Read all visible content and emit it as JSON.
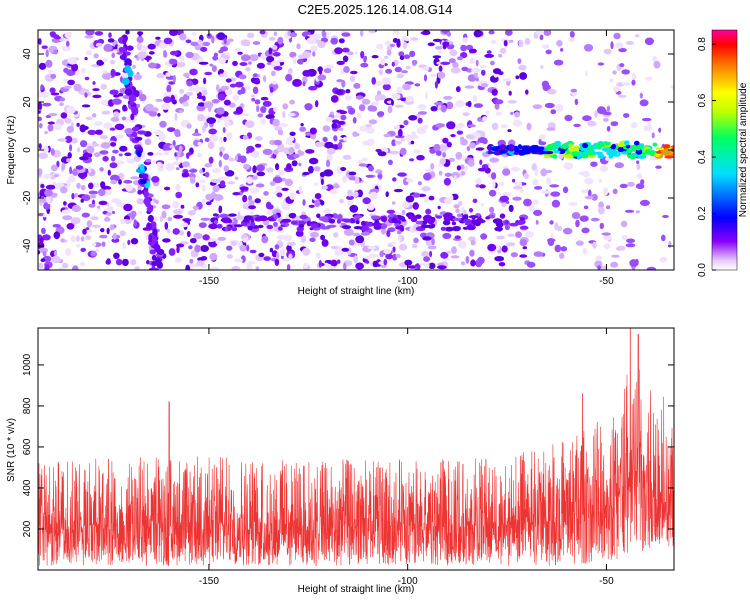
{
  "title": "C2E5.2025.126.14.08.G14",
  "chart_data": [
    {
      "type": "heatmap",
      "xlabel": "Height of straight line (km)",
      "ylabel": "Frequency (Hz)",
      "xlim": [
        -193,
        -33
      ],
      "ylim": [
        -50,
        50
      ],
      "xticks": [
        -150,
        -100,
        -50
      ],
      "yticks": [
        -40,
        -20,
        0,
        20,
        40
      ],
      "colorbar": {
        "label": "Normalized spectral amplitude",
        "range": [
          0,
          0.85
        ],
        "ticks": [
          0.0,
          0.2,
          0.4,
          0.6,
          0.8
        ],
        "colors": [
          "#ffffff",
          "#8800ff",
          "#0000ff",
          "#00e0ff",
          "#00ff60",
          "#c0ff00",
          "#ffff00",
          "#ff7000",
          "#ff0000",
          "#ff00a0"
        ]
      },
      "features": [
        {
          "description_values": "diagonal streak",
          "x_start": -172,
          "freq_start": 48,
          "x_end": -163,
          "freq_end": -48
        },
        {
          "description_values": "narrowband line near 0 Hz",
          "x_start": -80,
          "x_end": -33,
          "freq": 0
        }
      ]
    },
    {
      "type": "line",
      "xlabel": "Height of straight line (km)",
      "ylabel": "SNR (10 * v/v)",
      "xlim": [
        -193,
        -33
      ],
      "ylim": [
        0,
        1180
      ],
      "xticks": [
        -150,
        -100,
        -50
      ],
      "yticks": [
        200,
        400,
        600,
        800,
        1000
      ],
      "color": "#ee3333",
      "envelope": [
        {
          "x": -193,
          "low": 20,
          "high": 520
        },
        {
          "x": -170,
          "low": 20,
          "high": 560
        },
        {
          "x": -150,
          "low": 20,
          "high": 560
        },
        {
          "x": -130,
          "low": 20,
          "high": 540
        },
        {
          "x": -110,
          "low": 20,
          "high": 540
        },
        {
          "x": -90,
          "low": 20,
          "high": 540
        },
        {
          "x": -75,
          "low": 20,
          "high": 560
        },
        {
          "x": -65,
          "low": 20,
          "high": 600
        },
        {
          "x": -55,
          "low": 30,
          "high": 700
        },
        {
          "x": -48,
          "low": 50,
          "high": 800
        },
        {
          "x": -42,
          "low": 80,
          "high": 1100
        },
        {
          "x": -38,
          "low": 100,
          "high": 900
        },
        {
          "x": -33,
          "low": 100,
          "high": 800
        }
      ],
      "spikes": [
        {
          "x": -160,
          "y": 820
        },
        {
          "x": -56,
          "y": 860
        },
        {
          "x": -44,
          "y": 1180
        },
        {
          "x": -42,
          "y": 1150
        }
      ]
    }
  ]
}
